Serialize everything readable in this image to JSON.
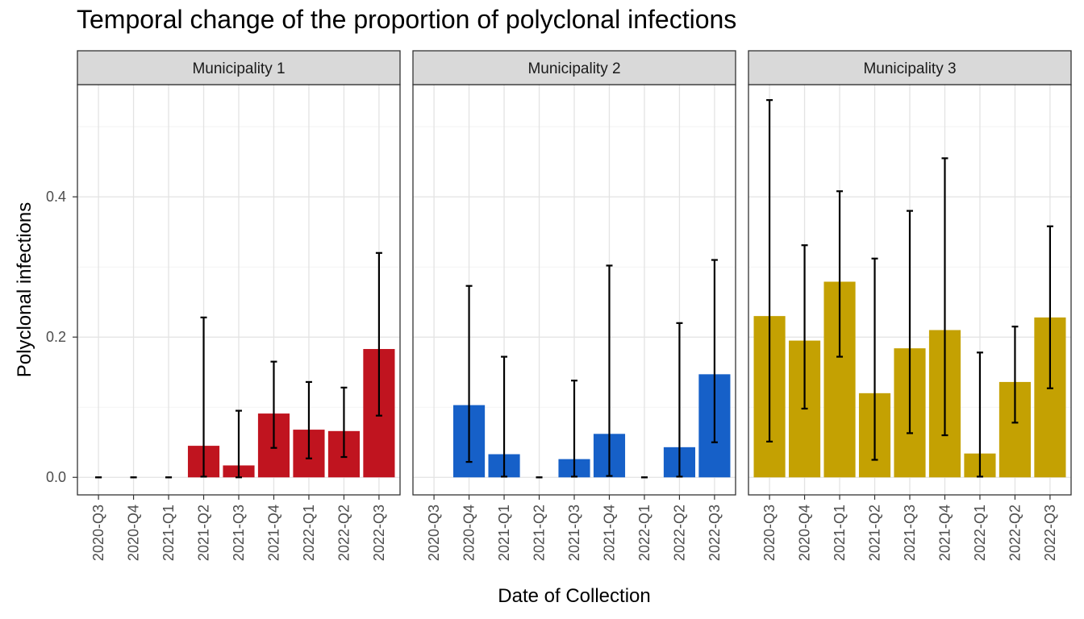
{
  "chart_data": {
    "type": "bar",
    "title": "Temporal change of the proportion of polyclonal infections",
    "xlabel": "Date of Collection",
    "ylabel": "Polyclonal infections",
    "ylim": [
      -0.025,
      0.56
    ],
    "yticks": [
      "0.0",
      "0.2",
      "0.4"
    ],
    "ytick_values": [
      0.0,
      0.2,
      0.4
    ],
    "categories": [
      "2020-Q3",
      "2020-Q4",
      "2021-Q1",
      "2021-Q2",
      "2021-Q3",
      "2021-Q4",
      "2022-Q1",
      "2022-Q2",
      "2022-Q3"
    ],
    "grid": true,
    "facets": [
      {
        "name": "Municipality 1",
        "color": "#C0141F",
        "values": [
          0.0,
          0.0,
          0.0,
          0.045,
          0.017,
          0.091,
          0.068,
          0.066,
          0.183
        ],
        "lower": [
          0.0,
          0.0,
          0.0,
          0.001,
          0.0,
          0.042,
          0.027,
          0.029,
          0.088
        ],
        "upper": [
          0.0,
          0.0,
          0.0,
          0.228,
          0.095,
          0.165,
          0.136,
          0.128,
          0.32
        ]
      },
      {
        "name": "Municipality 2",
        "color": "#1660C8",
        "values": [
          null,
          0.103,
          0.033,
          0.0,
          0.026,
          0.062,
          0.0,
          0.043,
          0.147
        ],
        "lower": [
          null,
          0.022,
          0.001,
          0.0,
          0.001,
          0.002,
          0.0,
          0.001,
          0.05
        ],
        "upper": [
          null,
          0.273,
          0.172,
          0.0,
          0.138,
          0.302,
          0.0,
          0.22,
          0.31
        ]
      },
      {
        "name": "Municipality 3",
        "color": "#C4A102",
        "values": [
          0.23,
          0.195,
          0.279,
          0.12,
          0.184,
          0.21,
          0.034,
          0.136,
          0.228
        ],
        "lower": [
          0.051,
          0.098,
          0.172,
          0.025,
          0.063,
          0.06,
          0.001,
          0.078,
          0.127
        ],
        "upper": [
          0.538,
          0.331,
          0.408,
          0.312,
          0.38,
          0.455,
          0.178,
          0.215,
          0.358
        ]
      }
    ]
  }
}
